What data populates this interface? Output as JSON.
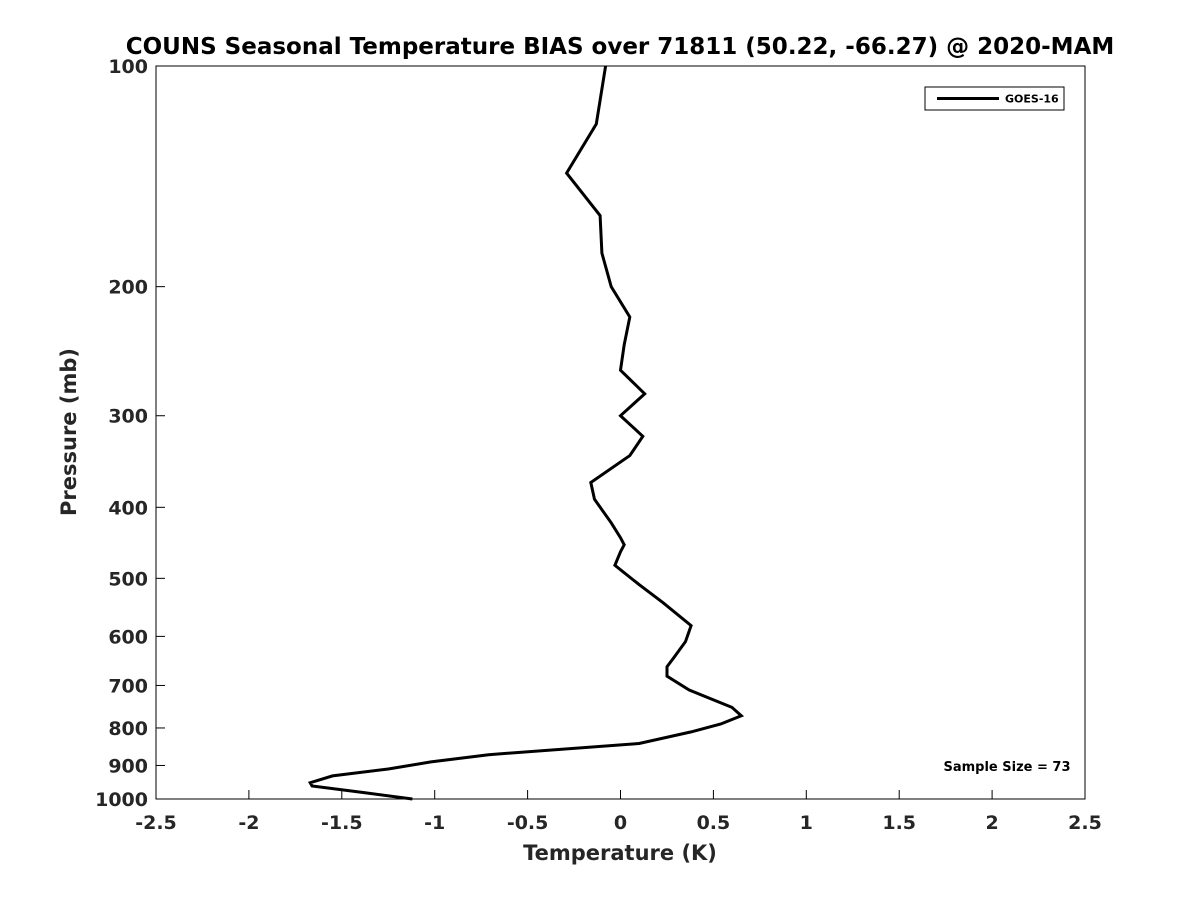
{
  "chart_data": {
    "type": "line",
    "title": "COUNS Seasonal Temperature BIAS over 71811 (50.22, -66.27) @ 2020-MAM",
    "xlabel": "Temperature (K)",
    "ylabel": "Pressure (mb)",
    "xlim": [
      -2.5,
      2.5
    ],
    "ylim": [
      1000,
      100
    ],
    "y_scale": "log",
    "y_reversed": true,
    "grid": false,
    "legend_position": "top-right",
    "x_ticks": [
      -2.5,
      -2,
      -1.5,
      -1,
      -0.5,
      0,
      0.5,
      1,
      1.5,
      2,
      2.5
    ],
    "x_tick_labels": [
      "-2.5",
      "-2",
      "-1.5",
      "-1",
      "-0.5",
      "0",
      "0.5",
      "1",
      "1.5",
      "2",
      "2.5"
    ],
    "y_ticks": [
      100,
      200,
      300,
      400,
      500,
      600,
      700,
      800,
      900,
      1000
    ],
    "y_tick_labels": [
      "100",
      "200",
      "300",
      "400",
      "500",
      "600",
      "700",
      "800",
      "900",
      "1000"
    ],
    "series": [
      {
        "name": "GOES-16",
        "color": "#000000",
        "x": [
          -0.08,
          -0.13,
          -0.29,
          -0.11,
          -0.1,
          -0.05,
          0.05,
          0.02,
          0.0,
          0.13,
          0.0,
          0.12,
          0.05,
          -0.16,
          -0.14,
          -0.05,
          0.0,
          0.02,
          0.0,
          -0.03,
          0.1,
          0.23,
          0.38,
          0.35,
          0.29,
          0.25,
          0.25,
          0.37,
          0.6,
          0.65,
          0.54,
          0.38,
          0.1,
          -0.71,
          -1.02,
          -1.25,
          -1.55,
          -1.67,
          -1.66,
          -1.38,
          -1.12
        ],
        "y": [
          100,
          120,
          140,
          160,
          180,
          200,
          220,
          240,
          260,
          280,
          300,
          320,
          340,
          370,
          390,
          420,
          440,
          450,
          460,
          480,
          510,
          540,
          580,
          610,
          640,
          660,
          680,
          710,
          750,
          770,
          790,
          810,
          840,
          870,
          890,
          910,
          930,
          950,
          960,
          980,
          1000
        ]
      }
    ],
    "annotations": [
      {
        "text": "Sample Size = 73",
        "position": "bottom-right"
      }
    ]
  }
}
